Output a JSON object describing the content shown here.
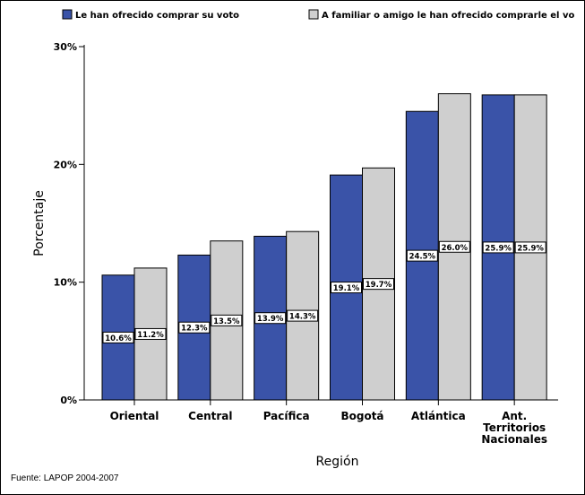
{
  "chart_data": {
    "type": "bar",
    "title": "",
    "xlabel": "Región",
    "ylabel": "Porcentaje",
    "ylim": [
      0,
      30
    ],
    "yticks": [
      "0%",
      "10%",
      "20%",
      "30%"
    ],
    "ytick_values": [
      0,
      10,
      20,
      30
    ],
    "categories": [
      [
        "Oriental"
      ],
      [
        "Central"
      ],
      [
        "Pacífica"
      ],
      [
        "Bogotá"
      ],
      [
        "Atlántica"
      ],
      [
        "Ant.",
        "Territorios",
        "Nacionales"
      ]
    ],
    "series": [
      {
        "name": "Le han ofrecido comprar su voto",
        "color": "#3a53a8",
        "values": [
          10.6,
          12.3,
          13.9,
          19.1,
          24.5,
          25.9
        ],
        "labels": [
          "10.6%",
          "12.3%",
          "13.9%",
          "19.1%",
          "24.5%",
          "25.9%"
        ]
      },
      {
        "name": "A familiar o amigo le han ofrecido comprarle el vo",
        "color": "#cfcfcf",
        "values": [
          11.2,
          13.5,
          14.3,
          19.7,
          26.0,
          25.9
        ],
        "labels": [
          "11.2%",
          "13.5%",
          "14.3%",
          "19.7%",
          "26.0%",
          "25.9%"
        ]
      }
    ],
    "legend_position": "top",
    "grid": false
  },
  "source_note": "Fuente: LAPOP 2004-2007"
}
